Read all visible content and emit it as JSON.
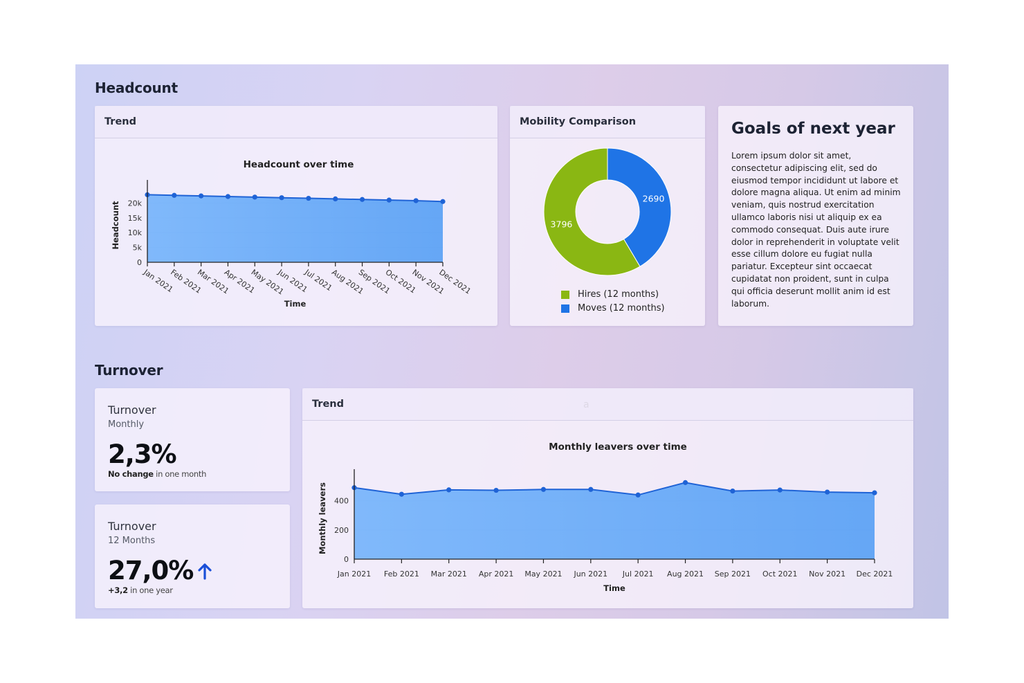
{
  "headcount": {
    "section_title": "Headcount",
    "trend_card": {
      "header": "Trend",
      "chart_data": {
        "type": "area",
        "title": "Headcount over time",
        "xlabel": "Time",
        "ylabel": "Headcount",
        "categories": [
          "Jan 2021",
          "Feb 2021",
          "Mar 2021",
          "Apr 2021",
          "May 2021",
          "Jun 2021",
          "Jul 2021",
          "Aug 2021",
          "Sep 2021",
          "Oct 2021",
          "Nov 2021",
          "Dec 2021"
        ],
        "values": [
          22800,
          22600,
          22400,
          22200,
          22000,
          21800,
          21600,
          21400,
          21200,
          21000,
          20800,
          20500
        ],
        "yticks": [
          "0",
          "5k",
          "10k",
          "15k",
          "20k"
        ],
        "ylim": [
          0,
          25000
        ],
        "color": "#6aa9f7"
      }
    },
    "mobility_card": {
      "header": "Mobility Comparison",
      "chart_data": {
        "type": "pie",
        "labels": [
          "Hires (12 months)",
          "Moves (12 months)"
        ],
        "values": [
          3796,
          2690
        ],
        "colors": [
          "#8ab713",
          "#1f74e6"
        ]
      }
    },
    "goals_card": {
      "title": "Goals of next year",
      "body": "Lorem ipsum dolor sit amet, consectetur adipiscing elit, sed do eiusmod tempor incididunt ut labore et dolore magna aliqua. Ut enim ad minim veniam, quis nostrud exercitation ullamco laboris nisi ut aliquip ex ea commodo consequat. Duis aute irure dolor in reprehenderit in voluptate velit esse cillum dolore eu fugiat nulla pariatur. Excepteur sint occaecat cupidatat non proident, sunt in culpa qui officia deserunt mollit anim id est laborum."
    }
  },
  "stray_char": "a",
  "turnover": {
    "section_title": "Turnover",
    "kpi_monthly": {
      "title": "Turnover",
      "subtitle": "Monthly",
      "value": "2,3%",
      "note_bold": "No change",
      "note_rest": " in one month"
    },
    "kpi_12m": {
      "title": "Turnover",
      "subtitle": "12 Months",
      "value": "27,0%",
      "trend_icon": "arrow-up-icon",
      "note_bold": "+3,2",
      "note_rest": " in one year",
      "accent": "#1a4fd8"
    },
    "trend_card": {
      "header": "Trend",
      "chart_data": {
        "type": "area",
        "title": "Monthly leavers over time",
        "xlabel": "Time",
        "ylabel": "Monthly leavers",
        "categories": [
          "Jan 2021",
          "Feb 2021",
          "Mar 2021",
          "Apr 2021",
          "May 2021",
          "Jun 2021",
          "Jul 2021",
          "Aug 2021",
          "Sep 2021",
          "Oct 2021",
          "Nov 2021",
          "Dec 2021"
        ],
        "values": [
          490,
          445,
          475,
          472,
          478,
          478,
          440,
          525,
          467,
          474,
          460,
          455
        ],
        "yticks": [
          "0",
          "200",
          "400"
        ],
        "ylim": [
          0,
          560
        ],
        "color": "#6aa9f7"
      }
    }
  }
}
